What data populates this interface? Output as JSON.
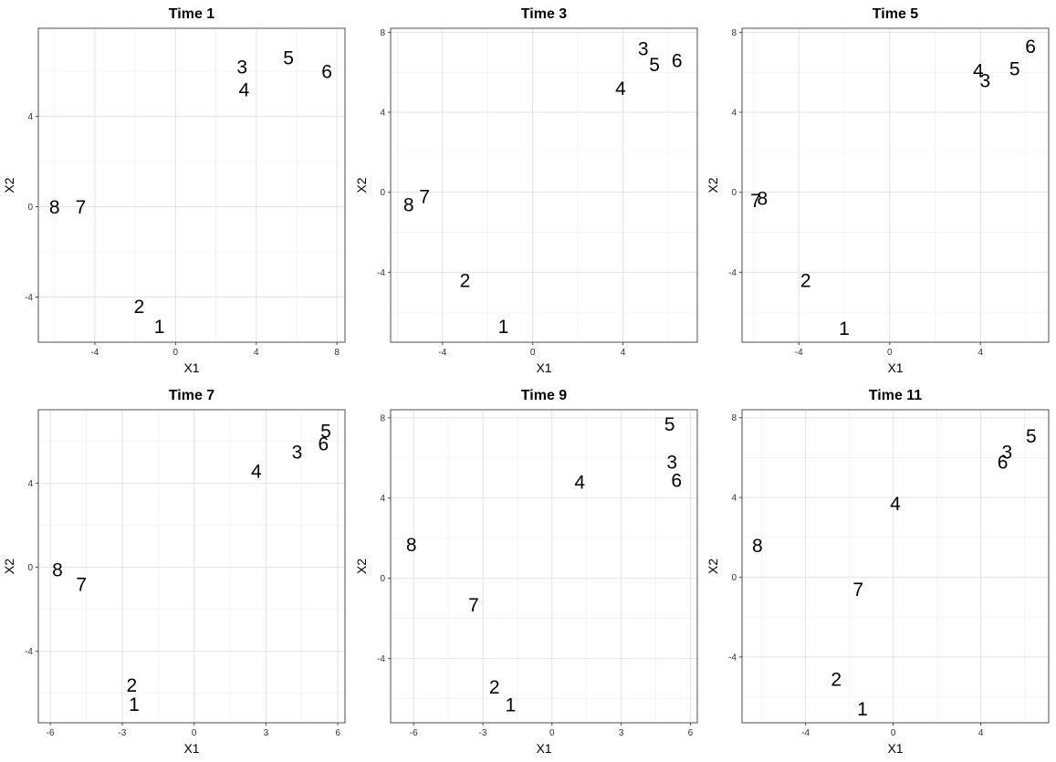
{
  "chart_data": [
    {
      "type": "scatter",
      "title": "Time 1",
      "xlabel": "X1",
      "ylabel": "X2",
      "xlim": [
        -6.8,
        8.4
      ],
      "ylim": [
        -6.0,
        7.9
      ],
      "xticks": [
        -4,
        0,
        4,
        8
      ],
      "yticks": [
        -4,
        0,
        4
      ],
      "grid": true,
      "points": [
        {
          "label": "1",
          "x": -0.8,
          "y": -5.3
        },
        {
          "label": "2",
          "x": -1.8,
          "y": -4.4
        },
        {
          "label": "3",
          "x": 3.3,
          "y": 6.2
        },
        {
          "label": "4",
          "x": 3.4,
          "y": 5.2
        },
        {
          "label": "5",
          "x": 5.6,
          "y": 6.6
        },
        {
          "label": "6",
          "x": 7.5,
          "y": 6.0
        },
        {
          "label": "7",
          "x": -4.7,
          "y": 0.0
        },
        {
          "label": "8",
          "x": -6.0,
          "y": 0.0
        }
      ]
    },
    {
      "type": "scatter",
      "title": "Time 3",
      "xlabel": "X1",
      "ylabel": "X2",
      "xlim": [
        -6.3,
        7.3
      ],
      "ylim": [
        -7.5,
        8.2
      ],
      "xticks": [
        -4,
        0,
        4
      ],
      "yticks": [
        -4,
        0,
        4,
        8
      ],
      "grid": true,
      "points": [
        {
          "label": "1",
          "x": -1.3,
          "y": -6.7
        },
        {
          "label": "2",
          "x": -3.0,
          "y": -4.4
        },
        {
          "label": "3",
          "x": 4.9,
          "y": 7.2
        },
        {
          "label": "4",
          "x": 3.9,
          "y": 5.2
        },
        {
          "label": "5",
          "x": 5.4,
          "y": 6.4
        },
        {
          "label": "6",
          "x": 6.4,
          "y": 6.6
        },
        {
          "label": "7",
          "x": -4.8,
          "y": -0.2
        },
        {
          "label": "8",
          "x": -5.5,
          "y": -0.6
        }
      ]
    },
    {
      "type": "scatter",
      "title": "Time 5",
      "xlabel": "X1",
      "ylabel": "X2",
      "xlim": [
        -6.5,
        7.0
      ],
      "ylim": [
        -7.5,
        8.2
      ],
      "xticks": [
        -4,
        0,
        4
      ],
      "yticks": [
        -4,
        0,
        4,
        8
      ],
      "grid": true,
      "points": [
        {
          "label": "1",
          "x": -2.0,
          "y": -6.8
        },
        {
          "label": "2",
          "x": -3.7,
          "y": -4.4
        },
        {
          "label": "3",
          "x": 4.2,
          "y": 5.6
        },
        {
          "label": "4",
          "x": 3.9,
          "y": 6.1
        },
        {
          "label": "5",
          "x": 5.5,
          "y": 6.2
        },
        {
          "label": "6",
          "x": 6.2,
          "y": 7.3
        },
        {
          "label": "7",
          "x": -5.9,
          "y": -0.4
        },
        {
          "label": "8",
          "x": -5.6,
          "y": -0.3
        }
      ]
    },
    {
      "type": "scatter",
      "title": "Time 7",
      "xlabel": "X1",
      "ylabel": "X2",
      "xlim": [
        -6.5,
        6.3
      ],
      "ylim": [
        -7.4,
        7.5
      ],
      "xticks": [
        -6,
        -3,
        0,
        3,
        6
      ],
      "yticks": [
        -4,
        0,
        4
      ],
      "grid": true,
      "points": [
        {
          "label": "1",
          "x": -2.5,
          "y": -6.5
        },
        {
          "label": "2",
          "x": -2.6,
          "y": -5.6
        },
        {
          "label": "3",
          "x": 4.3,
          "y": 5.5
        },
        {
          "label": "4",
          "x": 2.6,
          "y": 4.6
        },
        {
          "label": "5",
          "x": 5.5,
          "y": 6.5
        },
        {
          "label": "6",
          "x": 5.4,
          "y": 5.9
        },
        {
          "label": "7",
          "x": -4.7,
          "y": -0.8
        },
        {
          "label": "8",
          "x": -5.7,
          "y": -0.1
        }
      ]
    },
    {
      "type": "scatter",
      "title": "Time 9",
      "xlabel": "X1",
      "ylabel": "X2",
      "xlim": [
        -7.0,
        6.3
      ],
      "ylim": [
        -7.2,
        8.4
      ],
      "xticks": [
        -6,
        -3,
        0,
        3,
        6
      ],
      "yticks": [
        -4,
        0,
        4,
        8
      ],
      "grid": true,
      "points": [
        {
          "label": "1",
          "x": -1.8,
          "y": -6.3
        },
        {
          "label": "2",
          "x": -2.5,
          "y": -5.4
        },
        {
          "label": "3",
          "x": 5.2,
          "y": 5.8
        },
        {
          "label": "4",
          "x": 1.2,
          "y": 4.8
        },
        {
          "label": "5",
          "x": 5.1,
          "y": 7.7
        },
        {
          "label": "6",
          "x": 5.4,
          "y": 4.9
        },
        {
          "label": "7",
          "x": -3.4,
          "y": -1.3
        },
        {
          "label": "8",
          "x": -6.1,
          "y": 1.7
        }
      ]
    },
    {
      "type": "scatter",
      "title": "Time 11",
      "xlabel": "X1",
      "ylabel": "X2",
      "xlim": [
        -6.9,
        7.1
      ],
      "ylim": [
        -7.3,
        8.4
      ],
      "xticks": [
        -4,
        0,
        4
      ],
      "yticks": [
        -4,
        0,
        4,
        8
      ],
      "grid": true,
      "points": [
        {
          "label": "1",
          "x": -1.4,
          "y": -6.6
        },
        {
          "label": "2",
          "x": -2.6,
          "y": -5.1
        },
        {
          "label": "3",
          "x": 5.2,
          "y": 6.3
        },
        {
          "label": "4",
          "x": 0.1,
          "y": 3.7
        },
        {
          "label": "5",
          "x": 6.3,
          "y": 7.1
        },
        {
          "label": "6",
          "x": 5.0,
          "y": 5.8
        },
        {
          "label": "7",
          "x": -1.6,
          "y": -0.6
        },
        {
          "label": "8",
          "x": -6.2,
          "y": 1.6
        }
      ]
    }
  ]
}
